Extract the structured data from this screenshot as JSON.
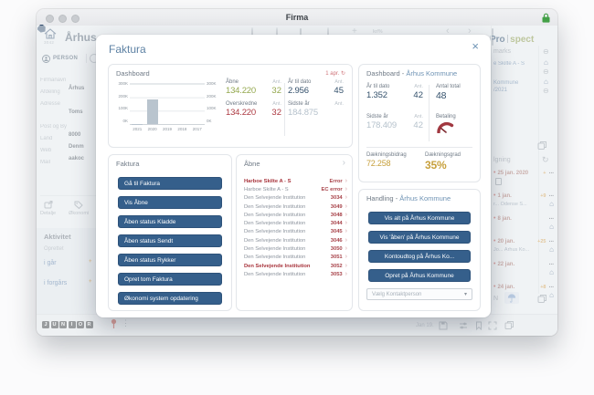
{
  "window": {
    "title": "Firma"
  },
  "icons": {
    "minus": "⊖",
    "refresh": "↻",
    "chevron_right": "›",
    "caret_down": "▾",
    "more": "···",
    "home": "⌂",
    "bullet": "•",
    "plus": "+",
    "back": "‹",
    "fwd": "›",
    "close": "×",
    "dots_v": "⋮",
    "currency": "kr/%"
  },
  "colors": {
    "accent_blue": "#5e82a4",
    "button_blue": "#355f8b",
    "positive_green": "#94a84e",
    "negative_red": "#ad3a42",
    "navy_value": "#33506b",
    "muted_value": "#b6c2cc",
    "gold_value": "#c7a03c",
    "bar_fill": "#b9c4ce",
    "logo_navy": "#16395e",
    "logo_green": "#7d8c2f"
  },
  "app": {
    "header": {
      "title": "Århus",
      "record_id": "3042",
      "logo_pro": "Pro",
      "logo_spect": "spect"
    },
    "tab_person": "PERSON",
    "fields": [
      {
        "label": "Firmanavn",
        "value": "Århus"
      },
      {
        "label": "Afdeling",
        "value": ""
      },
      {
        "label": "Adresse",
        "value": "Toms"
      },
      {
        "label": "Post og By",
        "value": "8000",
        "gap": true
      },
      {
        "label": "Land",
        "value": "Denm"
      },
      {
        "label": "Web",
        "value": "aakoc"
      },
      {
        "label": "Mail",
        "value": ""
      }
    ],
    "actions": [
      {
        "label": "Detalje"
      },
      {
        "label": "Økonomi"
      }
    ],
    "activity": {
      "title": "Aktivitet",
      "created_label": "Oprettet",
      "links": [
        "i går",
        "i forgårs"
      ]
    },
    "junior_logo": [
      "J",
      "U",
      "N",
      "I",
      "O",
      "R"
    ],
    "right": {
      "bookmarks_header": "marks",
      "bookmark1": {
        "line1": "e Skilte A - S"
      },
      "bookmark2": {
        "line1": "Kommune",
        "line2": "/2021"
      },
      "followup_header": "lgning",
      "entries": [
        {
          "date": "25 jan. 2020",
          "badge": "+",
          "home": false,
          "doc": true
        },
        {
          "date": "1 jan.",
          "badge": "+9",
          "sub": "r... Odense S...",
          "home": true
        },
        {
          "date": "8 jan.",
          "badge": "",
          "sub": "",
          "home": true
        },
        {
          "date": "20 jan.",
          "badge": "+25",
          "sub": "Jo... Århus Ko...",
          "home": true
        },
        {
          "date": "22 jan.",
          "badge": "",
          "sub": "",
          "home": true
        },
        {
          "date": "24 jan.",
          "badge": "+8",
          "sub": "",
          "home": true
        }
      ],
      "footer_n": "N"
    },
    "statusbar": {
      "date_label": "Jan 19."
    }
  },
  "modal": {
    "title": "Faktura",
    "dashboard": {
      "title": "Dashboard",
      "refresh_date": "1 apr.",
      "stats_left": [
        {
          "label": "Åbne",
          "ant_label": "Ant.",
          "value": "134.220",
          "ant": "32"
        },
        {
          "label": "Overskredne",
          "ant_label": "Ant.",
          "value": "134.220",
          "ant": "32"
        }
      ],
      "stats_right": [
        {
          "label": "År til dato",
          "ant_label": "Ant.",
          "value": "2.956",
          "ant": "45"
        },
        {
          "label": "Sidste år",
          "ant_label": "Ant.",
          "value": "184.875",
          "ant": ""
        }
      ]
    },
    "dashboard_kommune": {
      "title_prefix": "Dashboard -",
      "entity": "Århus Kommune",
      "ytd": {
        "label": "År til dato",
        "ant_label": "Ant.",
        "value": "1.352",
        "ant": "42"
      },
      "antal_total": {
        "label": "Antal total",
        "value": "48"
      },
      "last_year": {
        "label": "Sidste år",
        "ant_label": "Ant.",
        "value": "178.409",
        "ant": "42"
      },
      "betaling": {
        "label": "Betaling"
      },
      "daekningsbidrag": {
        "label": "Dækningsbidrag",
        "value": "72.258"
      },
      "daekningsgrad": {
        "label": "Dækningsgrad",
        "value": "35%"
      }
    },
    "faktura": {
      "title": "Faktura",
      "buttons": [
        "Gå til Faktura",
        "Vis Åbne",
        "Åben status Kladde",
        "Åben status Sendt",
        "Åben status Rykker",
        "Opret tom Faktura",
        "Økonomi system opdatering"
      ]
    },
    "aabne": {
      "title": "Åbne",
      "rows": [
        {
          "name": "Harboe Skilte A - S",
          "value": "Error",
          "highlight": true
        },
        {
          "name": "Harboe Skilte A - S",
          "value": "EC error"
        },
        {
          "name": "Den Selvejende Institution",
          "value": "3034"
        },
        {
          "name": "Den Selvejende Institution",
          "value": "3049"
        },
        {
          "name": "Den Selvejende Institution",
          "value": "3048"
        },
        {
          "name": "Den Selvejende Institution",
          "value": "3044"
        },
        {
          "name": "Den Selvejende Institution",
          "value": "3045"
        },
        {
          "name": "Den Selvejende Institution",
          "value": "3046"
        },
        {
          "name": "Den Selvejende Institution",
          "value": "3050"
        },
        {
          "name": "Den Selvejende Institution",
          "value": "3051"
        },
        {
          "name": "Den Selvejende Institution",
          "value": "3052",
          "highlight": true
        },
        {
          "name": "Den Selvejende Institution",
          "value": "3053"
        }
      ]
    },
    "handling": {
      "title_prefix": "Handling -",
      "entity": "Århus Kommune",
      "buttons": [
        "Vis alt på Århus Kommune",
        "Vis 'åben' på Århus Kommune",
        "Kontoudtog på Århus Ko...",
        "Opret på Århus Kommune"
      ],
      "select_placeholder": "Vælg Kontaktperson"
    }
  },
  "chart_data": {
    "type": "bar",
    "title": "Dashboard",
    "categories": [
      "2021",
      "2020",
      "2019",
      "2018",
      "2017"
    ],
    "values": [
      2956,
      184875,
      0,
      0,
      0
    ],
    "xlabel": "",
    "ylabel": "",
    "ylim": [
      0,
      300000
    ],
    "yticks": [
      "300K",
      "200K",
      "100K",
      "0K"
    ],
    "grid": true,
    "legend": false,
    "bar_color": "#b9c4ce"
  }
}
